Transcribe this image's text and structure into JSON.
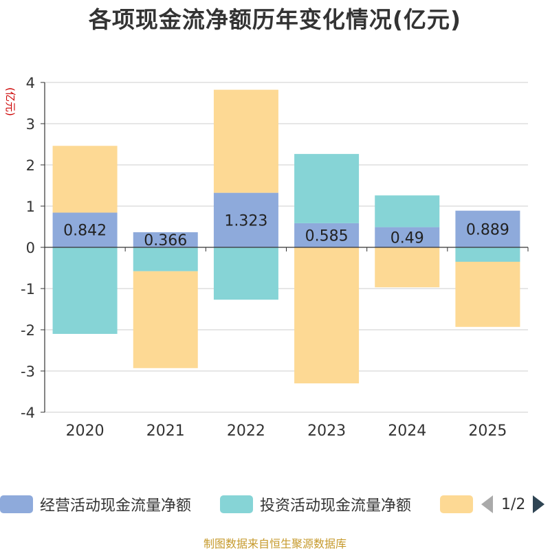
{
  "title": "各项现金流净额历年变化情况(亿元)",
  "source_note": "制图数据来自恒生聚源数据库",
  "pager": {
    "text": "1/2"
  },
  "chart_data": {
    "type": "bar",
    "stacked": true,
    "title": "各项现金流净额历年变化情况(亿元)",
    "ylabel": "(亿元)",
    "xlabel": "",
    "categories": [
      "2020",
      "2021",
      "2022",
      "2023",
      "2024",
      "2025"
    ],
    "ylim": [
      -4,
      4
    ],
    "yticks": [
      4,
      3,
      2,
      1,
      0,
      -1,
      -2,
      -3,
      -4
    ],
    "grid": true,
    "legend_position": "bottom",
    "series": [
      {
        "name": "经营活动现金流量净额",
        "color": "#8eaadb",
        "values": [
          0.842,
          0.366,
          1.323,
          0.585,
          0.49,
          0.889
        ],
        "labels": [
          "0.842",
          "0.366",
          "1.323",
          "0.585",
          "0.49",
          "0.889"
        ]
      },
      {
        "name": "投资活动现金流量净额",
        "color": "#86d4d6",
        "values": [
          -2.1,
          -0.58,
          -1.27,
          1.68,
          0.77,
          -0.35
        ]
      },
      {
        "name": "",
        "color": "#fdd994",
        "values": [
          1.62,
          -2.35,
          2.5,
          -3.3,
          -0.97,
          -1.58
        ]
      }
    ]
  }
}
